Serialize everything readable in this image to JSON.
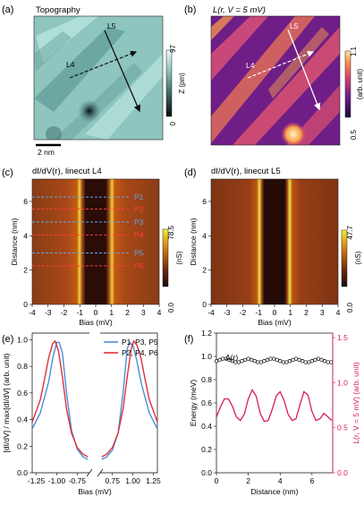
{
  "panels": {
    "a": {
      "label": "(a)",
      "title": "Topography",
      "line_labels": [
        "L5",
        "L4"
      ],
      "scalebar_label": "2 nm",
      "colorbar": {
        "max": "97",
        "min": "0",
        "label": "Z (pm)"
      }
    },
    "b": {
      "label": "(b)",
      "title": "L(r, V = 5 mV)",
      "line_labels": [
        "L5",
        "L4"
      ],
      "colorbar": {
        "max": "1.1",
        "min": "0.5",
        "label": "(arb. unit)"
      }
    },
    "c": {
      "label": "(c)",
      "title": "dI/dV(r), linecut L4",
      "point_labels": [
        "P1",
        "P2",
        "P3",
        "P4",
        "P5",
        "P6"
      ],
      "colorbar": {
        "max": "78.5",
        "min": "0.0",
        "label": "(nS)"
      }
    },
    "d": {
      "label": "(d)",
      "title": "dI/dV(r), linecut L5",
      "colorbar": {
        "max": "47.7",
        "min": "0.0",
        "label": "(nS)"
      }
    },
    "e": {
      "label": "(e)"
    },
    "f": {
      "label": "(f)",
      "annotation": "Δ(r)"
    }
  },
  "colors": {
    "blue_series": "#4a90d9",
    "red_series": "#e0303c",
    "dashed_blue": "#5fa8e8",
    "dashed_red": "#ff3b3b"
  },
  "chart_data": [
    {
      "type": "heatmap",
      "panel": "c",
      "xlabel": "Bias (mV)",
      "ylabel": "Distance (nm)",
      "xlim": [
        -4,
        4
      ],
      "ylim": [
        0,
        7.3
      ],
      "xticks": [
        -4,
        -3,
        -2,
        -1,
        0,
        1,
        2,
        3,
        4
      ],
      "yticks": [
        0,
        2,
        4,
        6
      ],
      "markers": [
        {
          "label": "P1",
          "distance": 6.25,
          "color": "blue"
        },
        {
          "label": "P2",
          "distance": 5.55,
          "color": "red"
        },
        {
          "label": "P3",
          "distance": 4.8,
          "color": "blue"
        },
        {
          "label": "P4",
          "distance": 4.05,
          "color": "red"
        },
        {
          "label": "P5",
          "distance": 3.0,
          "color": "blue"
        },
        {
          "label": "P6",
          "distance": 2.25,
          "color": "red"
        }
      ],
      "peak_bias": [
        -0.95,
        0.95
      ],
      "zlim": [
        0.0,
        78.5
      ],
      "zlabel": "(nS)"
    },
    {
      "type": "heatmap",
      "panel": "d",
      "xlabel": "Bias (mV)",
      "ylabel": "Distance (nm)",
      "xlim": [
        -4,
        4
      ],
      "ylim": [
        0,
        7.3
      ],
      "xticks": [
        -4,
        -3,
        -2,
        -1,
        0,
        1,
        2,
        3,
        4
      ],
      "yticks": [
        0,
        2,
        4,
        6
      ],
      "peak_bias": [
        -0.9,
        0.9
      ],
      "zlim": [
        0.0,
        47.7
      ],
      "zlabel": "(nS)"
    },
    {
      "type": "line",
      "panel": "e",
      "xlabel": "Bias (mV)",
      "ylabel": "[dI/dV] / max[dI/dV] (arb. unit)",
      "xlim_left": [
        -1.3,
        -0.6
      ],
      "xlim_right": [
        0.6,
        1.3
      ],
      "ylim": [
        0,
        1.05
      ],
      "xticks_left": [
        "-1.25",
        "-1.00",
        "-0.75"
      ],
      "xticks_right": [
        "0.75",
        "1.00",
        "1.25"
      ],
      "yticks": [
        "0.0",
        "0.2",
        "0.4",
        "0.6",
        "0.8",
        "1.0"
      ],
      "legend_position": "top-right",
      "series": [
        {
          "name": "P1, P3, P5",
          "color": "blue",
          "left": [
            [
              -1.3,
              0.33
            ],
            [
              -1.2,
              0.45
            ],
            [
              -1.1,
              0.68
            ],
            [
              -1.05,
              0.86
            ],
            [
              -1.0,
              0.98
            ],
            [
              -0.97,
              0.98
            ],
            [
              -0.93,
              0.9
            ],
            [
              -0.88,
              0.6
            ],
            [
              -0.82,
              0.32
            ],
            [
              -0.75,
              0.18
            ],
            [
              -0.68,
              0.12
            ],
            [
              -0.62,
              0.1
            ]
          ],
          "right": [
            [
              0.62,
              0.1
            ],
            [
              0.68,
              0.12
            ],
            [
              0.75,
              0.17
            ],
            [
              0.82,
              0.3
            ],
            [
              0.88,
              0.6
            ],
            [
              0.93,
              0.93
            ],
            [
              0.96,
              0.98
            ],
            [
              1.0,
              0.96
            ],
            [
              1.05,
              0.84
            ],
            [
              1.1,
              0.68
            ],
            [
              1.2,
              0.45
            ],
            [
              1.3,
              0.33
            ]
          ]
        },
        {
          "name": "P2, P4, P6",
          "color": "red",
          "left": [
            [
              -1.3,
              0.38
            ],
            [
              -1.2,
              0.55
            ],
            [
              -1.15,
              0.7
            ],
            [
              -1.1,
              0.86
            ],
            [
              -1.05,
              0.97
            ],
            [
              -1.02,
              0.99
            ],
            [
              -0.98,
              0.92
            ],
            [
              -0.93,
              0.72
            ],
            [
              -0.88,
              0.48
            ],
            [
              -0.82,
              0.3
            ],
            [
              -0.75,
              0.19
            ],
            [
              -0.68,
              0.14
            ],
            [
              -0.62,
              0.12
            ]
          ],
          "right": [
            [
              0.62,
              0.12
            ],
            [
              0.68,
              0.14
            ],
            [
              0.75,
              0.19
            ],
            [
              0.82,
              0.3
            ],
            [
              0.88,
              0.48
            ],
            [
              0.93,
              0.72
            ],
            [
              0.98,
              0.93
            ],
            [
              1.01,
              0.99
            ],
            [
              1.05,
              0.96
            ],
            [
              1.1,
              0.86
            ],
            [
              1.15,
              0.7
            ],
            [
              1.2,
              0.55
            ],
            [
              1.3,
              0.38
            ]
          ]
        }
      ]
    },
    {
      "type": "line",
      "panel": "f",
      "xlabel": "Distance (nm)",
      "ylabel_left": "Energy (meV)",
      "ylabel_right": "L(r, V = 5 mV) (arb. unit)",
      "xlim": [
        0,
        7.3
      ],
      "ylim_left": [
        0,
        1.2
      ],
      "ylim_right": [
        0,
        1.55
      ],
      "xticks": [
        0,
        2,
        4,
        6
      ],
      "yticks_left": [
        "0.0",
        "0.2",
        "0.4",
        "0.6",
        "0.8",
        "1.0",
        "1.2"
      ],
      "yticks_right": [
        "0.0",
        "0.5",
        "1.0",
        "1.5"
      ],
      "series": [
        {
          "name": "Δ(r)",
          "axis": "left",
          "color": "black",
          "x": [
            0.0,
            0.2,
            0.4,
            0.6,
            0.8,
            1.0,
            1.2,
            1.4,
            1.6,
            1.8,
            2.0,
            2.2,
            2.4,
            2.6,
            2.8,
            3.0,
            3.2,
            3.4,
            3.6,
            3.8,
            4.0,
            4.2,
            4.4,
            4.6,
            4.8,
            5.0,
            5.2,
            5.4,
            5.6,
            5.8,
            6.0,
            6.2,
            6.4,
            6.6,
            6.8,
            7.0,
            7.2
          ],
          "y": [
            0.96,
            0.97,
            0.98,
            0.98,
            0.97,
            0.96,
            0.95,
            0.95,
            0.96,
            0.97,
            0.98,
            0.97,
            0.96,
            0.95,
            0.95,
            0.96,
            0.97,
            0.98,
            0.98,
            0.97,
            0.96,
            0.95,
            0.95,
            0.96,
            0.97,
            0.98,
            0.97,
            0.96,
            0.95,
            0.95,
            0.96,
            0.97,
            0.98,
            0.97,
            0.96,
            0.95,
            0.95
          ]
        },
        {
          "name": "L(r, V = 5 mV)",
          "axis": "right",
          "color": "crimson",
          "x": [
            0.0,
            0.25,
            0.5,
            0.75,
            1.0,
            1.25,
            1.5,
            1.75,
            2.0,
            2.25,
            2.5,
            2.75,
            3.0,
            3.25,
            3.5,
            3.75,
            4.0,
            4.25,
            4.5,
            4.75,
            5.0,
            5.25,
            5.5,
            5.75,
            6.0,
            6.25,
            6.5,
            6.75,
            7.0,
            7.25
          ],
          "y": [
            0.62,
            0.73,
            0.82,
            0.82,
            0.74,
            0.62,
            0.58,
            0.65,
            0.82,
            0.92,
            0.85,
            0.66,
            0.57,
            0.58,
            0.7,
            0.85,
            0.9,
            0.8,
            0.65,
            0.58,
            0.6,
            0.76,
            0.9,
            0.86,
            0.68,
            0.58,
            0.6,
            0.66,
            0.62,
            0.58
          ]
        }
      ]
    }
  ]
}
